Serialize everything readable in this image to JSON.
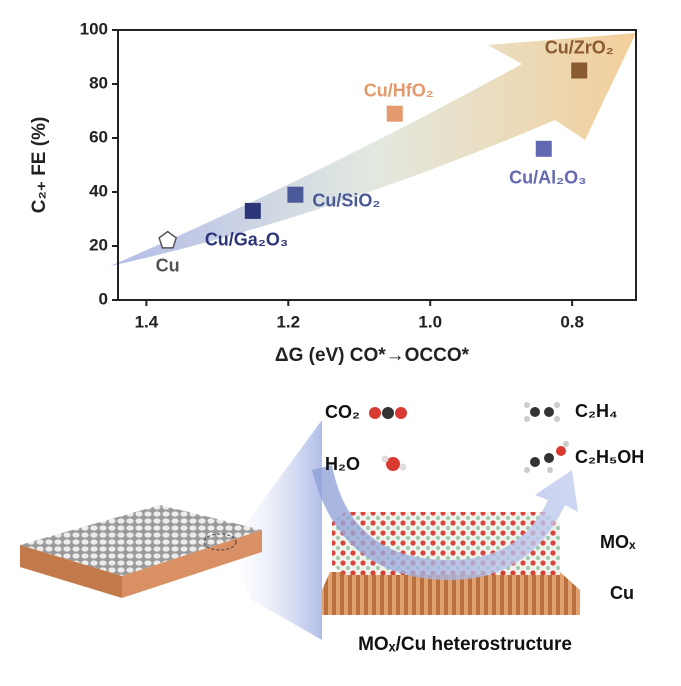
{
  "chart_data": {
    "type": "scatter",
    "x_label": "ΔG (eV) CO*→OCCO*",
    "y_label": "C₂₊ FE (%)",
    "xlim": [
      1.44,
      0.71
    ],
    "xticks": [
      1.4,
      1.2,
      {
        "value": 1.0,
        "label": "1.0"
      },
      0.8
    ],
    "ylim": [
      0,
      100
    ],
    "yticks": [
      0,
      20,
      40,
      60,
      80,
      100
    ],
    "series": [
      {
        "name": "Cu",
        "color": "#555555",
        "marker": "pentagon",
        "x": [
          1.37
        ],
        "values": [
          22
        ]
      },
      {
        "name": "Cu/Ga₂O₃",
        "color": "#2b3578",
        "marker": "square",
        "x": [
          1.25
        ],
        "values": [
          33
        ]
      },
      {
        "name": "Cu/SiO₂",
        "color": "#4a5a98",
        "marker": "square",
        "x": [
          1.19
        ],
        "values": [
          39
        ]
      },
      {
        "name": "Cu/HfO₂",
        "color": "#e49a6c",
        "marker": "square",
        "x": [
          1.05
        ],
        "values": [
          69
        ]
      },
      {
        "name": "Cu/Al₂O₃",
        "color": "#6369b0",
        "marker": "square",
        "x": [
          0.84
        ],
        "values": [
          56
        ]
      },
      {
        "name": "Cu/ZrO₂",
        "color": "#8a5a30",
        "marker": "square",
        "x": [
          0.79
        ],
        "values": [
          85
        ]
      }
    ]
  },
  "illustration": {
    "reactants": [
      "CO₂",
      "H₂O"
    ],
    "products": [
      "C₂H₄",
      "C₂H₅OH"
    ],
    "layers": [
      "MOₓ",
      "Cu"
    ],
    "caption": "MOₓ/Cu heterostructure"
  }
}
